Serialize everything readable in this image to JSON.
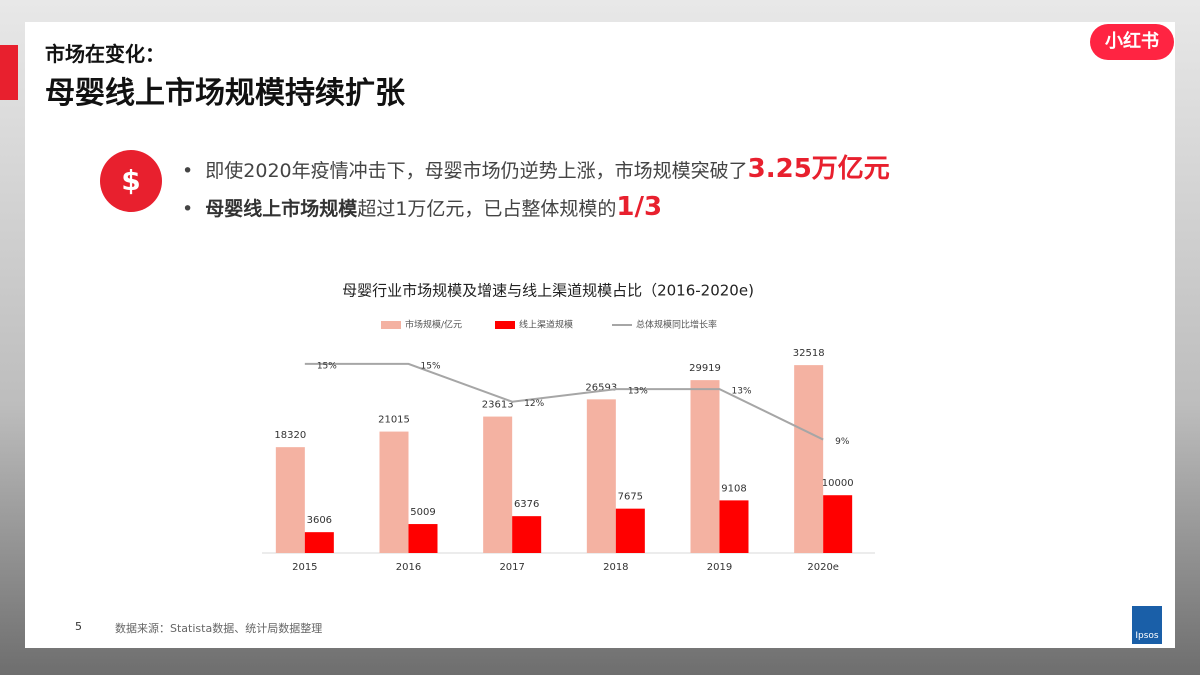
{
  "header": {
    "subtitle": "市场在变化：",
    "title": "母婴线上市场规模持续扩张"
  },
  "logo": "小红书",
  "bullets": [
    {
      "text": "即使2020年疫情冲击下，母婴市场仍逆势上涨，市场规模突破了",
      "highlight": "3.25万亿元"
    },
    {
      "bold": "母婴线上市场规模",
      "text": "超过1万亿元，已占整体规模的",
      "highlight": "1/3"
    }
  ],
  "chart_data": {
    "type": "bar",
    "title": "母婴行业市场规模及增速与线上渠道规模占比（2016-2020e)",
    "categories": [
      "2015",
      "2016",
      "2017",
      "2018",
      "2019",
      "2020e"
    ],
    "ylim": [
      0,
      36000
    ],
    "y2lim": [
      0,
      16.5
    ],
    "series": [
      {
        "name": "市场规模/亿元",
        "color": "#f4b2a2",
        "values": [
          18320,
          21015,
          23613,
          26593,
          29919,
          32518
        ]
      },
      {
        "name": "线上渠道规模",
        "color": "#ff0000",
        "values": [
          3606,
          5009,
          6376,
          7675,
          9108,
          10000
        ]
      },
      {
        "name": "总体规模同比增长率",
        "color": "#a6a6a6",
        "type": "line",
        "axis": "y2",
        "values": [
          15,
          15,
          12,
          13,
          13,
          9
        ],
        "value_labels": [
          "15%",
          "15%",
          "12%",
          "13%",
          "13%",
          "9%"
        ]
      }
    ]
  },
  "footer": {
    "page": "5",
    "source": "数据来源：Statista数据、统计局数据整理",
    "brand": "Ipsos"
  }
}
